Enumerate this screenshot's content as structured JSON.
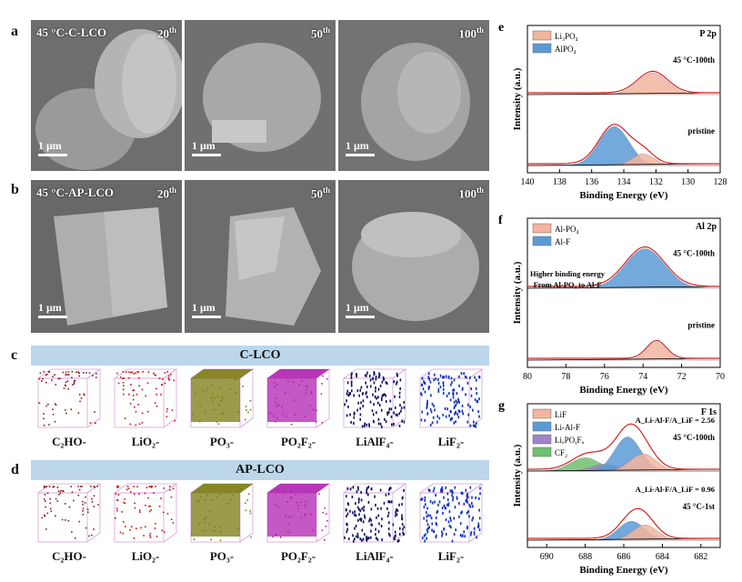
{
  "panels": {
    "a": {
      "letter": "a",
      "title": "45 °C-C-LCO",
      "cycles": [
        "20",
        "50",
        "100"
      ],
      "cycle_sup": "th",
      "scale": "1 μm"
    },
    "b": {
      "letter": "b",
      "title": "45 °C-AP-LCO",
      "cycles": [
        "20",
        "50",
        "100"
      ],
      "cycle_sup": "th",
      "scale": "1 μm"
    },
    "c": {
      "letter": "c",
      "banner": "C-LCO",
      "species": [
        "C₂HO-",
        "LiO₂-",
        "PO₃-",
        "PO₂F₂-",
        "LiAlF₄-",
        "LiF₂-"
      ]
    },
    "d": {
      "letter": "d",
      "banner": "AP-LCO",
      "species": [
        "C₂HO-",
        "LiO₂-",
        "PO₃-",
        "PO₂F₂-",
        "LiAlF₄-",
        "LiF₂-"
      ]
    }
  },
  "colors": {
    "red_fit": "#d82020",
    "peach_fill": "#f4b4a0",
    "blue_fill": "#5b9bd5",
    "purple_fill": "#9b86c9",
    "green_fill": "#70c070",
    "banner": "#bcd6ea",
    "cube_colors": [
      "#8b1a1a",
      "#cc1010",
      "#7a7a10",
      "#b020b0",
      "#101060",
      "#1030c0"
    ]
  },
  "chart_data": [
    {
      "id": "e",
      "type": "line",
      "panel_letter": "e",
      "corner_label": "P 2p",
      "xlabel": "Binding Energy (eV)",
      "ylabel": "Intensity (a.u.)",
      "xlim": [
        140,
        128
      ],
      "xticks": [
        140,
        138,
        136,
        134,
        132,
        130,
        128
      ],
      "x_reversed": true,
      "legend": [
        "Li₃PO₄",
        "AlPO₄"
      ],
      "spectra": [
        {
          "label": "45 °C-100th",
          "peaks": [
            {
              "component": "Li₃PO₄",
              "center": 132.2,
              "height": 0.55,
              "fwhm": 2.2
            }
          ]
        },
        {
          "label": "pristine",
          "peaks": [
            {
              "component": "AlPO₄",
              "center": 134.6,
              "height": 1.0,
              "fwhm": 2.2
            },
            {
              "component": "Li₃PO₄",
              "center": 132.8,
              "height": 0.3,
              "fwhm": 1.6
            }
          ]
        }
      ]
    },
    {
      "id": "f",
      "type": "line",
      "panel_letter": "f",
      "corner_label": "Al 2p",
      "xlabel": "Binding Energy (eV)",
      "ylabel": "Intensity (a.u.)",
      "xlim": [
        80,
        70
      ],
      "xticks": [
        80,
        78,
        76,
        74,
        72,
        70
      ],
      "x_reversed": true,
      "legend": [
        "Al-PO₄",
        "Al-F"
      ],
      "annotation": [
        "Higher binding energy",
        "From Al-PO₄ to Al-F"
      ],
      "spectra": [
        {
          "label": "45 °C-100th",
          "peaks": [
            {
              "component": "Al-F",
              "center": 73.9,
              "height": 1.0,
              "fwhm": 2.4
            }
          ]
        },
        {
          "label": "pristine",
          "peaks": [
            {
              "component": "Al-PO₄",
              "center": 73.3,
              "height": 0.45,
              "fwhm": 1.2
            }
          ]
        }
      ]
    },
    {
      "id": "g",
      "type": "line",
      "panel_letter": "g",
      "corner_label": "F 1s",
      "xlabel": "Binding Energy (eV)",
      "ylabel": "Intensity (a.u.)",
      "xlim": [
        691,
        681
      ],
      "xticks": [
        690,
        688,
        686,
        684,
        682
      ],
      "x_reversed": true,
      "legend": [
        "LiF",
        "Li-Al-F",
        "LiₓPOᵧFᵤ",
        "CF₂"
      ],
      "spectra": [
        {
          "label": "45 °C-100th",
          "ratio": "A_Li-Al-F/A_LiF = 2.56",
          "peaks": [
            {
              "component": "CF₂",
              "center": 688.0,
              "height": 0.35,
              "fwhm": 1.8
            },
            {
              "component": "LiₓPOᵧFᵤ",
              "center": 687.0,
              "height": 0.18,
              "fwhm": 1.6
            },
            {
              "component": "Li-Al-F",
              "center": 685.8,
              "height": 0.9,
              "fwhm": 1.6
            },
            {
              "component": "LiF",
              "center": 685.0,
              "height": 0.45,
              "fwhm": 1.6
            }
          ]
        },
        {
          "label": "45 °C-1st",
          "ratio": "A_Li-Al-F/A_LiF = 0.96",
          "peaks": [
            {
              "component": "Li-Al-F",
              "center": 685.6,
              "height": 0.5,
              "fwhm": 1.6
            },
            {
              "component": "LiF",
              "center": 684.9,
              "height": 0.4,
              "fwhm": 1.5
            }
          ]
        }
      ]
    }
  ]
}
